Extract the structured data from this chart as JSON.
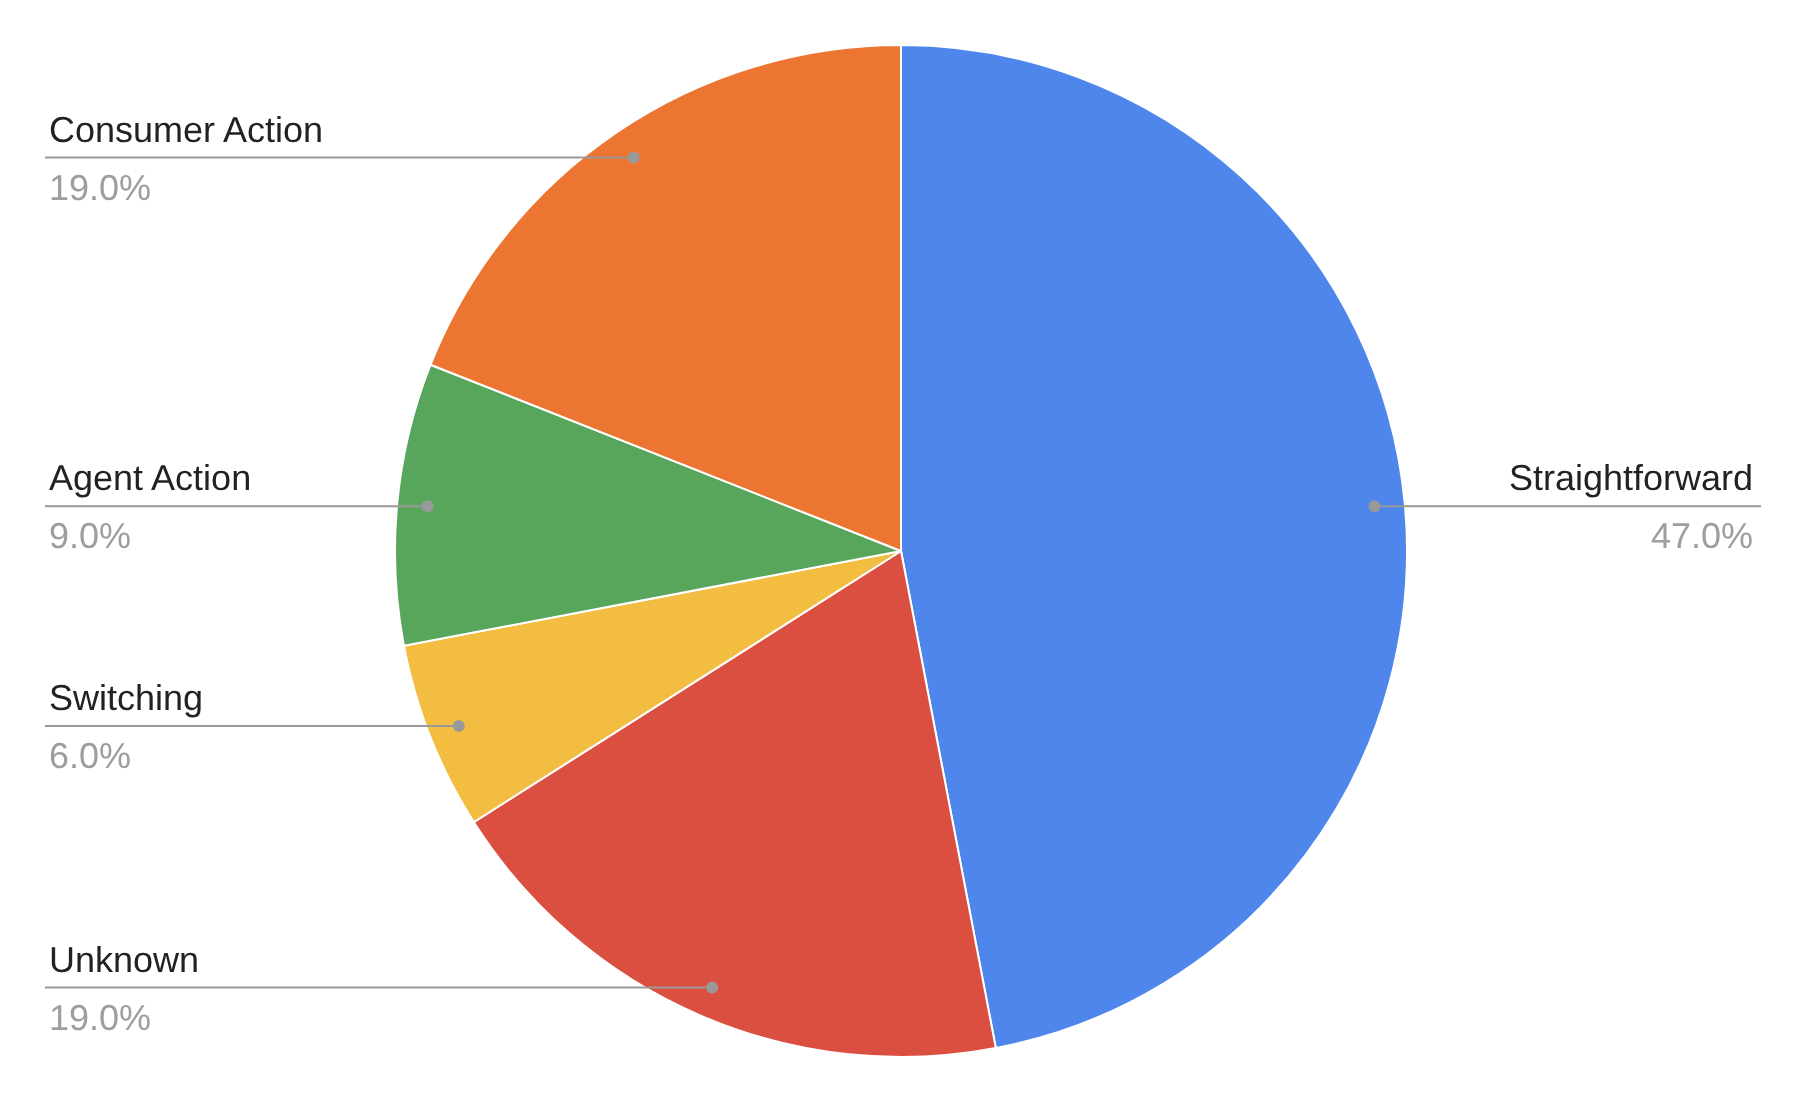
{
  "chart_data": {
    "type": "pie",
    "categories": [
      "Straightforward",
      "Unknown",
      "Switching",
      "Agent Action",
      "Consumer Action"
    ],
    "values": [
      47,
      19,
      6,
      9,
      19
    ],
    "value_labels": [
      "47.0%",
      "19.0%",
      "6.0%",
      "9.0%",
      "19.0%"
    ],
    "colors": [
      "#4f86ec",
      "#db4f40",
      "#f3bd41",
      "#58a65c",
      "#ed7532"
    ]
  }
}
